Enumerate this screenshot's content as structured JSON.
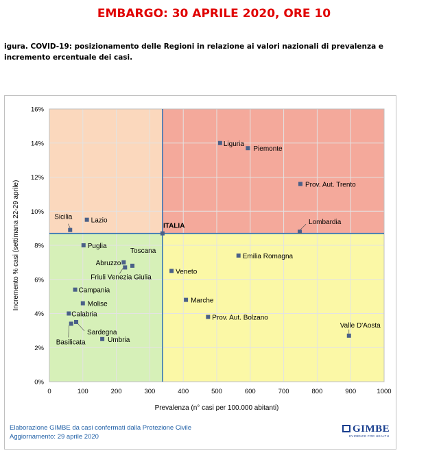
{
  "header": {
    "embargo": "EMBARGO: 30 APRILE 2020, ORE 10",
    "caption": "igura. COVID-19: posizionamento delle Regioni in relazione ai valori nazionali di prevalenza e incremento ercentuale dei casi."
  },
  "footer": {
    "line1": "Elaborazione GIMBE da casi confermati dalla Protezione Civile",
    "line2": "Aggiornamento: 29 aprile 2020",
    "logo_text": "GIMBE",
    "logo_sub": "EVIDENCE FOR HEALTH"
  },
  "colors": {
    "top_right": "#f4a99b",
    "top_left": "#fbd8bd",
    "bottom_left": "#d6f0b8",
    "bottom_right": "#fbf8a6",
    "divider": "#2f6fb5",
    "marker": "#4a6088",
    "grid": "#e3e3e3"
  },
  "chart_data": {
    "type": "scatter",
    "xlabel": "Prevalenza  (n° casi per 100.000 abitanti)",
    "ylabel": "Incremento % casi (settimana 22-29 aprile)",
    "xlim": [
      0,
      1000
    ],
    "ylim": [
      0,
      16
    ],
    "x_ticks": [
      "0",
      "100",
      "200",
      "300",
      "400",
      "500",
      "600",
      "700",
      "800",
      "900",
      "1000"
    ],
    "y_ticks": [
      "0%",
      "2%",
      "4%",
      "6%",
      "8%",
      "10%",
      "12%",
      "14%",
      "16%"
    ],
    "grid": true,
    "reference": {
      "name": "ITALIA",
      "x": 338,
      "y": 8.7
    },
    "points": [
      {
        "name": "Liguria",
        "x": 510,
        "y": 14.0
      },
      {
        "name": "Piemonte",
        "x": 593,
        "y": 13.7
      },
      {
        "name": "Prov. Aut. Trento",
        "x": 750,
        "y": 11.6
      },
      {
        "name": "Lombardia",
        "x": 748,
        "y": 8.8
      },
      {
        "name": "Sicilia",
        "x": 62,
        "y": 8.9
      },
      {
        "name": "Lazio",
        "x": 112,
        "y": 9.5
      },
      {
        "name": "Puglia",
        "x": 102,
        "y": 8.0
      },
      {
        "name": "Abruzzo",
        "x": 222,
        "y": 7.0
      },
      {
        "name": "Toscana",
        "x": 248,
        "y": 6.8
      },
      {
        "name": "Friuli Venezia Giulia",
        "x": 226,
        "y": 6.7
      },
      {
        "name": "Campania",
        "x": 77,
        "y": 5.4
      },
      {
        "name": "Molise",
        "x": 100,
        "y": 4.6
      },
      {
        "name": "Calabria",
        "x": 58,
        "y": 4.0
      },
      {
        "name": "Sardegna",
        "x": 80,
        "y": 3.5
      },
      {
        "name": "Basilicata",
        "x": 65,
        "y": 3.4
      },
      {
        "name": "Umbria",
        "x": 158,
        "y": 2.5
      },
      {
        "name": "Emilia Romagna",
        "x": 565,
        "y": 7.4
      },
      {
        "name": "Veneto",
        "x": 365,
        "y": 6.5
      },
      {
        "name": "Marche",
        "x": 408,
        "y": 4.8
      },
      {
        "name": "Prov. Aut. Bolzano",
        "x": 474,
        "y": 3.8
      },
      {
        "name": "Valle D'Aosta",
        "x": 895,
        "y": 2.7
      }
    ]
  }
}
